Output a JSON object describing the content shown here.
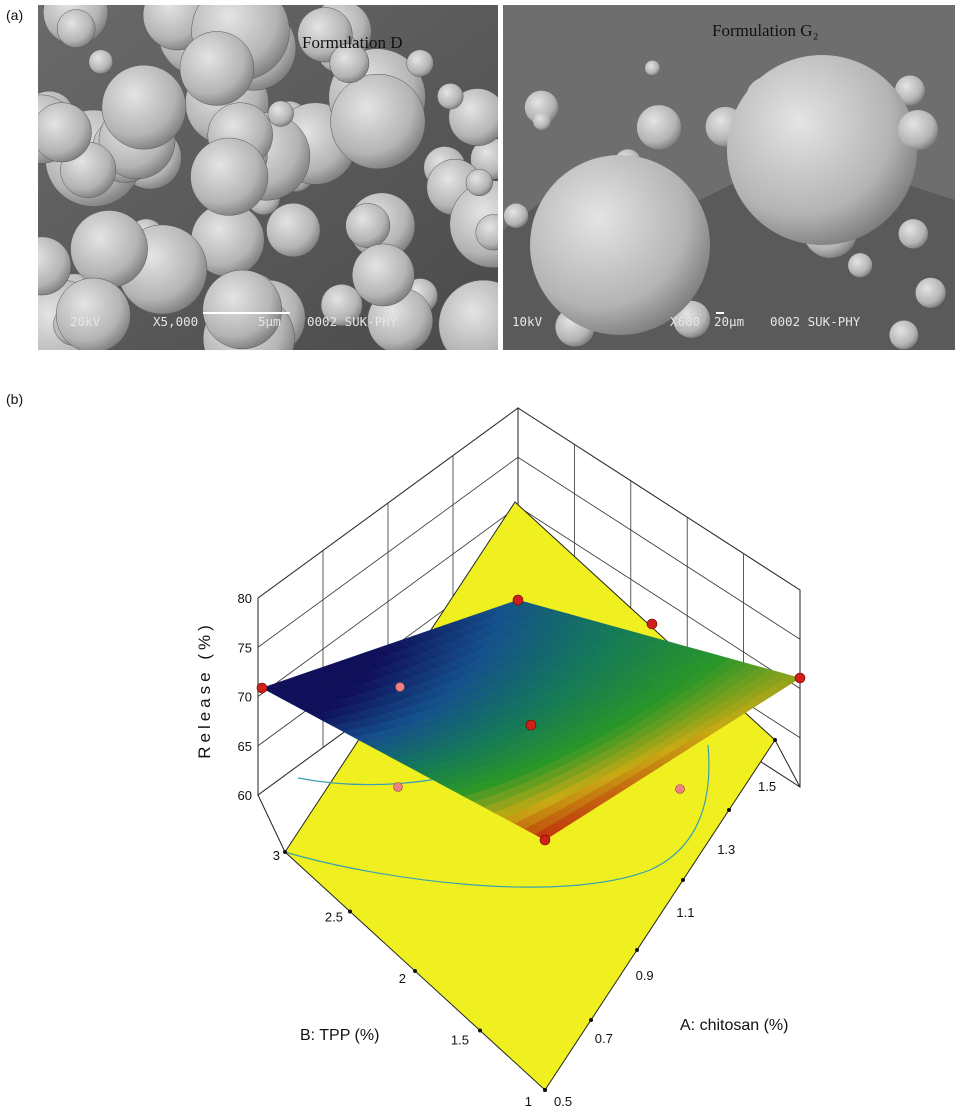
{
  "panel_a": {
    "label": "(a)",
    "images": [
      {
        "caption": "Formulation D",
        "scale_bar": [
          "20kV",
          "X5,000",
          "5μm",
          "0002 SUK-PHY"
        ]
      },
      {
        "caption": "Formulation G₂",
        "scale_bar": [
          "10kV",
          "X600",
          "20μm",
          "0002 SUK-PHY"
        ]
      }
    ]
  },
  "panel_b": {
    "label": "(b)",
    "z_axis": {
      "label": "Release (%)",
      "ticks": [
        60,
        65,
        70,
        75,
        80
      ]
    },
    "b_axis": {
      "label": "B: TPP (%)",
      "ticks": [
        1,
        1.5,
        2,
        2.5,
        3
      ]
    },
    "a_axis": {
      "label": "A: chitosan (%)",
      "ticks": [
        0.5,
        0.7,
        0.9,
        1.1,
        1.3,
        1.5
      ]
    }
  }
}
